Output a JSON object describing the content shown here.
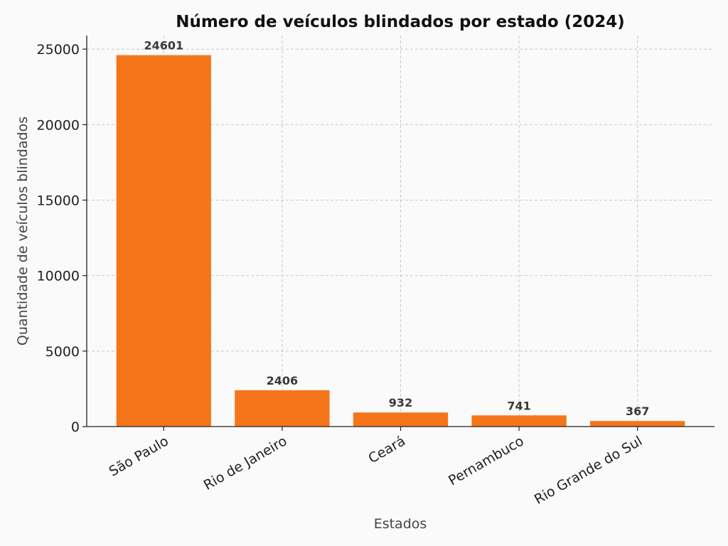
{
  "chart_data": {
    "type": "bar",
    "title": "Número de veículos blindados por estado (2024)",
    "xlabel": "Estados",
    "ylabel": "Quantidade de veículos blindados",
    "categories": [
      "São Paulo",
      "Rio de Janeiro",
      "Ceará",
      "Pernambuco",
      "Rio Grande do Sul"
    ],
    "values": [
      24601,
      2406,
      932,
      741,
      367
    ],
    "data_labels": [
      "24601",
      "2406",
      "932",
      "741",
      "367"
    ],
    "ylim": [
      0,
      25900
    ],
    "yticks": [
      0,
      5000,
      10000,
      15000,
      20000,
      25000
    ],
    "ytick_labels": [
      "0",
      "5000",
      "10000",
      "15000",
      "20000",
      "25000"
    ],
    "grid": true,
    "bar_color": "#f5751b",
    "legend": "none"
  }
}
